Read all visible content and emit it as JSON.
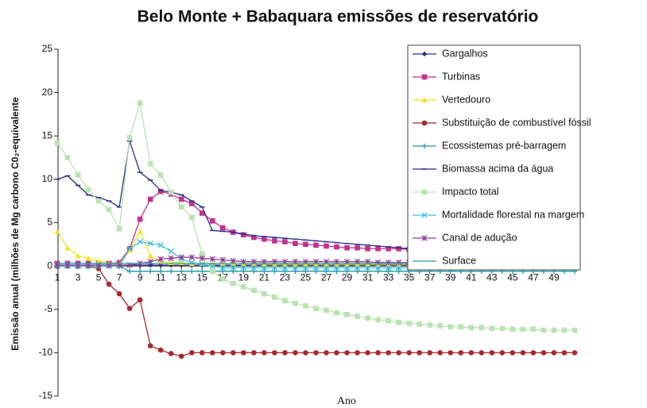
{
  "chart_data": {
    "type": "line",
    "title": "Belo Monte + Babaquara emissões de reservatório",
    "x_label": "Ano",
    "y_label": "Emissão anual (milhões de Mg carbono C0₂-equivalente",
    "x": [
      1,
      2,
      3,
      4,
      5,
      6,
      7,
      8,
      9,
      10,
      11,
      12,
      13,
      14,
      15,
      16,
      17,
      18,
      19,
      20,
      21,
      22,
      23,
      24,
      25,
      26,
      27,
      28,
      29,
      30,
      31,
      32,
      33,
      34,
      35,
      36,
      37,
      38,
      39,
      40,
      41,
      42,
      43,
      44,
      45,
      46,
      47,
      48,
      49,
      50,
      51
    ],
    "xlim": [
      1,
      51
    ],
    "xticks": [
      1,
      3,
      5,
      7,
      9,
      11,
      13,
      15,
      17,
      19,
      21,
      23,
      25,
      27,
      29,
      31,
      33,
      35,
      37,
      39,
      41,
      43,
      45,
      47,
      49
    ],
    "ylim": [
      -15,
      25
    ],
    "yticks": [
      -15,
      -10,
      -5,
      0,
      5,
      10,
      15,
      20,
      25
    ],
    "grid": false,
    "legend": "upper right",
    "series": [
      {
        "name": "Gargalhos",
        "color": "#2b2f8a",
        "marker": "diamond",
        "values": [
          0.1,
          0.1,
          0.1,
          0.1,
          0.1,
          0.1,
          0.1,
          0.1,
          0.1,
          0.1,
          0.1,
          0.1,
          0.1,
          0.1,
          0.1,
          0.1,
          0.1,
          0.1,
          0.1,
          0.1,
          0.1,
          0.1,
          0.1,
          0.1,
          0.1,
          0.1,
          0.1,
          0.1,
          0.1,
          0.1,
          0.1,
          0.1,
          0.1,
          0.1,
          0.1,
          0.1,
          0.1,
          0.1,
          0.1,
          0.1,
          0.1,
          0.1,
          0.1,
          0.1,
          0.1,
          0.1,
          0.1,
          0.1,
          0.1,
          0.1,
          0.1
        ]
      },
      {
        "name": "Turbinas",
        "color": "#c0338f",
        "marker": "square",
        "values": [
          0.3,
          0.3,
          0.3,
          0.3,
          0.3,
          0.3,
          0.4,
          2.0,
          5.4,
          7.7,
          8.6,
          8.3,
          7.7,
          7.2,
          6.1,
          5.2,
          4.4,
          3.9,
          3.6,
          3.3,
          3.1,
          2.9,
          2.8,
          2.6,
          2.5,
          2.4,
          2.3,
          2.2,
          2.1,
          2.1,
          2.0,
          2.0,
          2.0,
          2.0,
          1.9,
          1.9,
          1.9,
          1.9,
          1.9,
          1.9,
          1.9,
          1.8,
          1.8,
          1.8,
          1.8,
          1.8,
          1.8,
          1.8,
          1.8,
          1.8,
          1.8
        ]
      },
      {
        "name": "Vertedouro",
        "color": "#f2e21a",
        "marker": "triangle",
        "values": [
          4.0,
          2.1,
          1.2,
          0.9,
          0.6,
          0.3,
          0.2,
          1.8,
          4.0,
          1.2,
          0.5,
          0.4,
          0.4,
          0.3,
          0.3,
          0.3,
          0.3,
          0.3,
          0.3,
          0.3,
          0.2,
          0.2,
          0.2,
          0.2,
          0.2,
          0.2,
          0.2,
          0.2,
          0.2,
          0.2,
          0.2,
          0.2,
          0.2,
          0.2,
          0.2,
          0.2,
          0.2,
          0.2,
          0.2,
          0.2,
          0.2,
          0.2,
          0.2,
          0.2,
          0.2,
          0.2,
          0.2,
          0.2,
          0.2,
          0.2,
          0.2
        ]
      },
      {
        "name": "Substituição de combustível fóssil",
        "color": "#a8292c",
        "marker": "circle",
        "values": [
          0,
          0,
          0,
          0,
          -0.3,
          -2.1,
          -3.2,
          -4.9,
          -3.9,
          -9.2,
          -9.7,
          -10.1,
          -10.4,
          -10.0,
          -10.0,
          -10.0,
          -10.0,
          -10.0,
          -10.0,
          -10.0,
          -10.0,
          -10.0,
          -10.0,
          -10.0,
          -10.0,
          -10.0,
          -10.0,
          -10.0,
          -10.0,
          -10.0,
          -10.0,
          -10.0,
          -10.0,
          -10.0,
          -10.0,
          -10.0,
          -10.0,
          -10.0,
          -10.0,
          -10.0,
          -10.0,
          -10.0,
          -10.0,
          -10.0,
          -10.0,
          -10.0,
          -10.0,
          -10.0,
          -10.0,
          -10.0,
          -10.0
        ]
      },
      {
        "name": "Ecossistemas pré-barragem",
        "color": "#1f9aa5",
        "marker": "plus",
        "values": [
          0,
          0,
          0,
          0,
          0,
          0,
          0,
          -0.6,
          -0.6,
          -0.6,
          -0.6,
          -0.6,
          -0.6,
          -0.6,
          -0.6,
          -0.6,
          -0.6,
          -0.6,
          -0.6,
          -0.6,
          -0.6,
          -0.6,
          -0.6,
          -0.6,
          -0.6,
          -0.6,
          -0.6,
          -0.6,
          -0.6,
          -0.6,
          -0.6,
          -0.6,
          -0.6,
          -0.6,
          -0.6,
          -0.6,
          -0.6,
          -0.6,
          -0.6,
          -0.6,
          -0.6,
          -0.6,
          -0.6,
          -0.6,
          -0.6,
          -0.6,
          -0.6,
          -0.6,
          -0.6,
          -0.6,
          -0.6
        ]
      },
      {
        "name": "Biomassa acima da água",
        "color": "#2b2f8a",
        "marker": "dash",
        "values": [
          10.0,
          10.4,
          9.3,
          8.2,
          7.9,
          7.5,
          6.8,
          14.4,
          10.8,
          9.9,
          8.7,
          8.5,
          8.2,
          7.5,
          6.8,
          4.1,
          4.0,
          3.9,
          3.7,
          3.5,
          3.4,
          3.3,
          3.2,
          3.1,
          3.0,
          2.9,
          2.8,
          2.7,
          2.6,
          2.5,
          2.4,
          2.3,
          2.2,
          2.1,
          2.0,
          1.9,
          1.8,
          1.7,
          1.6,
          1.5,
          1.4,
          1.3,
          1.2,
          1.1,
          1.0,
          0.9,
          0.8,
          0.7,
          0.6,
          0.5,
          0.4
        ]
      },
      {
        "name": "Impacto total",
        "color": "#b9e3b0",
        "marker": "square",
        "values": [
          14.2,
          12.5,
          10.5,
          8.8,
          7.5,
          6.5,
          4.3,
          14.8,
          18.8,
          11.8,
          10.5,
          8.5,
          6.8,
          5.6,
          1.4,
          -0.6,
          -1.5,
          -2.0,
          -2.4,
          -2.8,
          -3.2,
          -3.6,
          -4.0,
          -4.3,
          -4.6,
          -4.9,
          -5.1,
          -5.4,
          -5.6,
          -5.8,
          -6.0,
          -6.2,
          -6.3,
          -6.5,
          -6.6,
          -6.7,
          -6.8,
          -6.9,
          -7.0,
          -7.0,
          -7.1,
          -7.1,
          -7.2,
          -7.2,
          -7.3,
          -7.3,
          -7.3,
          -7.4,
          -7.4,
          -7.4,
          -7.4
        ]
      },
      {
        "name": "Mortalidade florestal na margem",
        "color": "#3fc0e0",
        "marker": "x",
        "values": [
          0,
          0,
          0,
          0,
          0,
          0,
          0,
          2.0,
          2.8,
          2.6,
          2.4,
          1.7,
          0.8,
          0.4,
          0.2,
          0.0,
          -0.2,
          -0.2,
          -0.2,
          -0.2,
          -0.2,
          -0.2,
          -0.2,
          -0.2,
          -0.2,
          -0.2,
          -0.2,
          -0.2,
          -0.2,
          -0.2,
          -0.2,
          -0.2,
          -0.2,
          -0.2,
          -0.2,
          -0.2,
          -0.2,
          -0.2,
          -0.2,
          -0.2,
          -0.2,
          -0.2,
          -0.2,
          -0.2,
          -0.2,
          -0.2,
          -0.2,
          -0.2,
          -0.2,
          -0.2,
          -0.2
        ]
      },
      {
        "name": "Canal de adução",
        "color": "#8e3f98",
        "marker": "star",
        "values": [
          0.1,
          0.1,
          0.1,
          0.1,
          0.1,
          0.1,
          0.1,
          0.1,
          0.3,
          0.5,
          0.8,
          0.9,
          1.0,
          1.0,
          0.9,
          0.8,
          0.7,
          0.6,
          0.5,
          0.5,
          0.5,
          0.5,
          0.5,
          0.5,
          0.5,
          0.5,
          0.5,
          0.5,
          0.5,
          0.5,
          0.5,
          0.4,
          0.4,
          0.4,
          0.4,
          0.4,
          0.4,
          0.4,
          0.4,
          0.4,
          0.4,
          0.3,
          0.3,
          0.3,
          0.3,
          0.3,
          0.3,
          0.3,
          0.3,
          0.3,
          0.3
        ]
      },
      {
        "name": "Surface",
        "color": "#2a9d9d",
        "marker": "none",
        "values": [
          0.3,
          0.3,
          0.3,
          0.3,
          0.3,
          0.3,
          0.3,
          0.3,
          0.3,
          0.3,
          0.3,
          0.3,
          0.3,
          0.3,
          0.3,
          0.3,
          0.3,
          0.3,
          0.3,
          0.3,
          0.3,
          0.3,
          0.3,
          0.3,
          0.3,
          0.3,
          0.3,
          0.3,
          0.3,
          0.3,
          0.3,
          0.3,
          0.3,
          0.3,
          0.3,
          0.3,
          0.3,
          0.3,
          0.3,
          0.3,
          0.3,
          0.3,
          0.3,
          0.3,
          0.3,
          0.3,
          0.3,
          0.3,
          0.3,
          0.3,
          0.3
        ]
      }
    ]
  }
}
